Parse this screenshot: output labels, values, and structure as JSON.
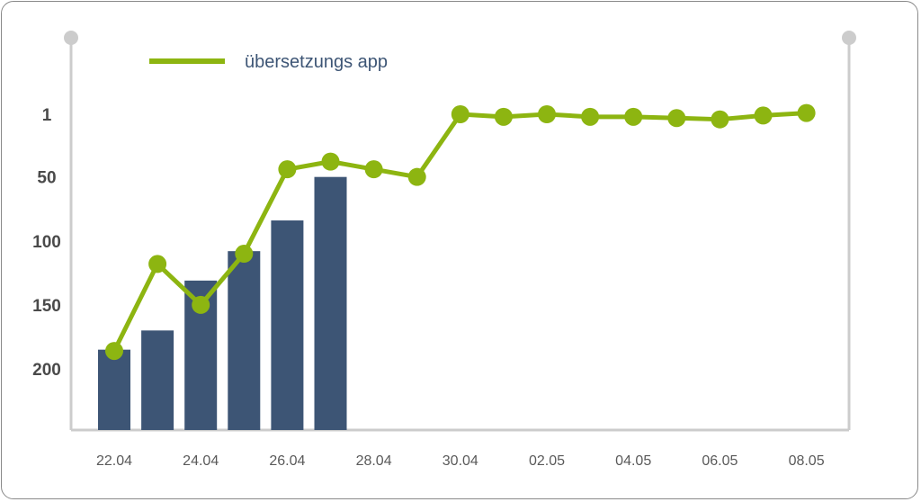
{
  "chart_data": {
    "type": "bar+line",
    "categories": [
      "22.04",
      "23.04",
      "24.04",
      "25.04",
      "26.04",
      "27.04",
      "28.04",
      "29.04",
      "30.04",
      "01.05",
      "02.05",
      "03.05",
      "04.05",
      "05.05",
      "06.05",
      "07.05",
      "08.05"
    ],
    "x_tick_labels": [
      "22.04",
      "24.04",
      "26.04",
      "28.04",
      "30.04",
      "02.05",
      "04.05",
      "06.05",
      "08.05"
    ],
    "y_tick_labels": [
      "1",
      "50",
      "100",
      "150",
      "200"
    ],
    "y_ticks": [
      1,
      50,
      100,
      150,
      200
    ],
    "y_axis": "inverted",
    "ylim": [
      1,
      250
    ],
    "bars": {
      "values": [
        185,
        170,
        131,
        108,
        84,
        50
      ],
      "color": "#3d5575"
    },
    "series": [
      {
        "name": "übersetzungs app",
        "color": "#8db511",
        "values": [
          186,
          118,
          150,
          110,
          44,
          38,
          44,
          50,
          1,
          3,
          1,
          3,
          3,
          4,
          5,
          2,
          0
        ]
      }
    ],
    "legend": "top-left",
    "axis_color": "#cccccc"
  }
}
